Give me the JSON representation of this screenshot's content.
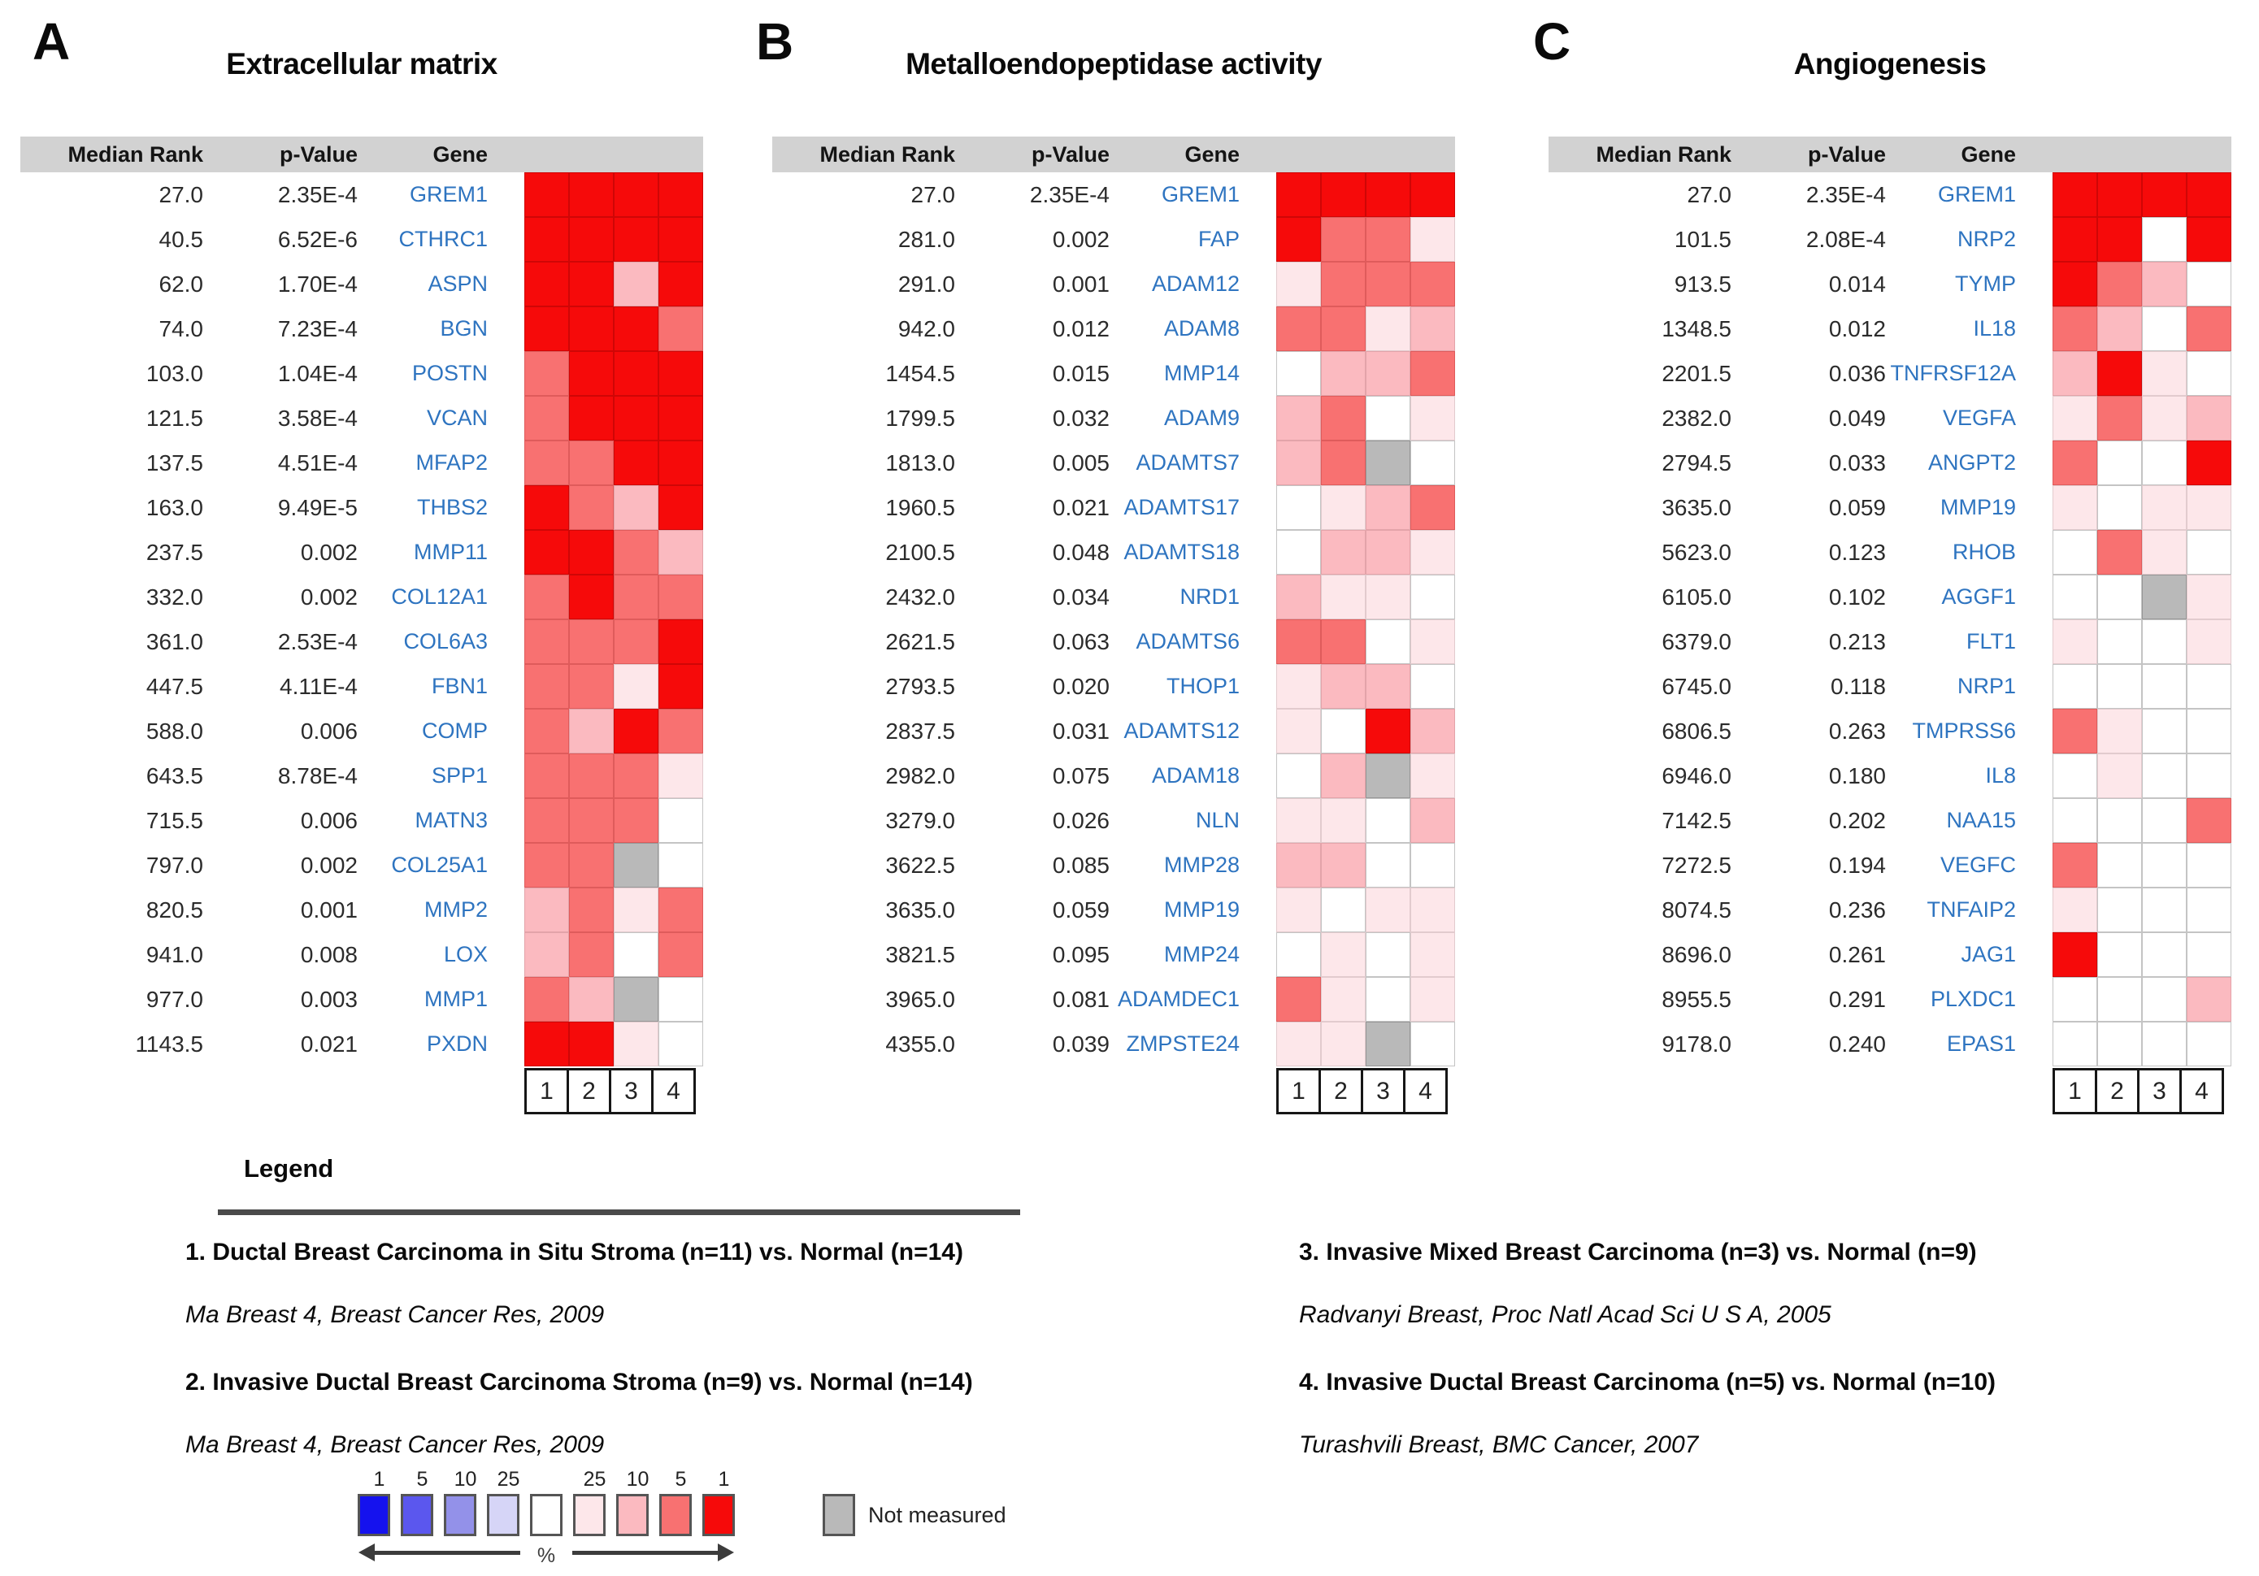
{
  "chart_data": {
    "type": "heatmap",
    "panels": [
      {
        "letter": "A",
        "title": "Extracellular matrix",
        "headers": {
          "median_rank": "Median Rank",
          "p_value": "p-Value",
          "gene": "Gene"
        },
        "lane_labels": [
          "1",
          "2",
          "3",
          "4"
        ],
        "rows": [
          {
            "median_rank": "27.0",
            "p_value": "2.35E-4",
            "gene": "GREM1",
            "cells": [
              "r1",
              "r1",
              "r1",
              "r1"
            ]
          },
          {
            "median_rank": "40.5",
            "p_value": "6.52E-6",
            "gene": "CTHRC1",
            "cells": [
              "r1",
              "r1",
              "r1",
              "r1"
            ]
          },
          {
            "median_rank": "62.0",
            "p_value": "1.70E-4",
            "gene": "ASPN",
            "cells": [
              "r1",
              "r1",
              "r10",
              "r1"
            ]
          },
          {
            "median_rank": "74.0",
            "p_value": "7.23E-4",
            "gene": "BGN",
            "cells": [
              "r1",
              "r1",
              "r1",
              "r5"
            ]
          },
          {
            "median_rank": "103.0",
            "p_value": "1.04E-4",
            "gene": "POSTN",
            "cells": [
              "r5",
              "r1",
              "r1",
              "r1"
            ]
          },
          {
            "median_rank": "121.5",
            "p_value": "3.58E-4",
            "gene": "VCAN",
            "cells": [
              "r5",
              "r1",
              "r1",
              "r1"
            ]
          },
          {
            "median_rank": "137.5",
            "p_value": "4.51E-4",
            "gene": "MFAP2",
            "cells": [
              "r5",
              "r5",
              "r1",
              "r1"
            ]
          },
          {
            "median_rank": "163.0",
            "p_value": "9.49E-5",
            "gene": "THBS2",
            "cells": [
              "r1",
              "r5",
              "r10",
              "r1"
            ]
          },
          {
            "median_rank": "237.5",
            "p_value": "0.002",
            "gene": "MMP11",
            "cells": [
              "r1",
              "r1",
              "r5",
              "r10"
            ]
          },
          {
            "median_rank": "332.0",
            "p_value": "0.002",
            "gene": "COL12A1",
            "cells": [
              "r5",
              "r1",
              "r5",
              "r5"
            ]
          },
          {
            "median_rank": "361.0",
            "p_value": "2.53E-4",
            "gene": "COL6A3",
            "cells": [
              "r5",
              "r5",
              "r5",
              "r1"
            ]
          },
          {
            "median_rank": "447.5",
            "p_value": "4.11E-4",
            "gene": "FBN1",
            "cells": [
              "r5",
              "r5",
              "r25",
              "r1"
            ]
          },
          {
            "median_rank": "588.0",
            "p_value": "0.006",
            "gene": "COMP",
            "cells": [
              "r5",
              "r10",
              "r1",
              "r5"
            ]
          },
          {
            "median_rank": "643.5",
            "p_value": "8.78E-4",
            "gene": "SPP1",
            "cells": [
              "r5",
              "r5",
              "r5",
              "r25"
            ]
          },
          {
            "median_rank": "715.5",
            "p_value": "0.006",
            "gene": "MATN3",
            "cells": [
              "r5",
              "r5",
              "r5",
              "w"
            ]
          },
          {
            "median_rank": "797.0",
            "p_value": "0.002",
            "gene": "COL25A1",
            "cells": [
              "r5",
              "r5",
              "nm",
              "w"
            ]
          },
          {
            "median_rank": "820.5",
            "p_value": "0.001",
            "gene": "MMP2",
            "cells": [
              "r10",
              "r5",
              "r25",
              "r5"
            ]
          },
          {
            "median_rank": "941.0",
            "p_value": "0.008",
            "gene": "LOX",
            "cells": [
              "r10",
              "r5",
              "w",
              "r5"
            ]
          },
          {
            "median_rank": "977.0",
            "p_value": "0.003",
            "gene": "MMP1",
            "cells": [
              "r5",
              "r10",
              "nm",
              "w"
            ]
          },
          {
            "median_rank": "1143.5",
            "p_value": "0.021",
            "gene": "PXDN",
            "cells": [
              "r1",
              "r1",
              "r25",
              "w"
            ]
          }
        ]
      },
      {
        "letter": "B",
        "title": "Metalloendopeptidase activity",
        "headers": {
          "median_rank": "Median Rank",
          "p_value": "p-Value",
          "gene": "Gene"
        },
        "lane_labels": [
          "1",
          "2",
          "3",
          "4"
        ],
        "rows": [
          {
            "median_rank": "27.0",
            "p_value": "2.35E-4",
            "gene": "GREM1",
            "cells": [
              "r1",
              "r1",
              "r1",
              "r1"
            ]
          },
          {
            "median_rank": "281.0",
            "p_value": "0.002",
            "gene": "FAP",
            "cells": [
              "r1",
              "r5",
              "r5",
              "r25"
            ]
          },
          {
            "median_rank": "291.0",
            "p_value": "0.001",
            "gene": "ADAM12",
            "cells": [
              "r25",
              "r5",
              "r5",
              "r5"
            ]
          },
          {
            "median_rank": "942.0",
            "p_value": "0.012",
            "gene": "ADAM8",
            "cells": [
              "r5",
              "r5",
              "r25",
              "r10"
            ]
          },
          {
            "median_rank": "1454.5",
            "p_value": "0.015",
            "gene": "MMP14",
            "cells": [
              "w",
              "r10",
              "r10",
              "r5"
            ]
          },
          {
            "median_rank": "1799.5",
            "p_value": "0.032",
            "gene": "ADAM9",
            "cells": [
              "r10",
              "r5",
              "w",
              "r25"
            ]
          },
          {
            "median_rank": "1813.0",
            "p_value": "0.005",
            "gene": "ADAMTS7",
            "cells": [
              "r10",
              "r5",
              "nm",
              "w"
            ]
          },
          {
            "median_rank": "1960.5",
            "p_value": "0.021",
            "gene": "ADAMTS17",
            "cells": [
              "w",
              "r25",
              "r10",
              "r5"
            ]
          },
          {
            "median_rank": "2100.5",
            "p_value": "0.048",
            "gene": "ADAMTS18",
            "cells": [
              "w",
              "r10",
              "r10",
              "r25"
            ]
          },
          {
            "median_rank": "2432.0",
            "p_value": "0.034",
            "gene": "NRD1",
            "cells": [
              "r10",
              "r25",
              "r25",
              "w"
            ]
          },
          {
            "median_rank": "2621.5",
            "p_value": "0.063",
            "gene": "ADAMTS6",
            "cells": [
              "r5",
              "r5",
              "w",
              "r25"
            ]
          },
          {
            "median_rank": "2793.5",
            "p_value": "0.020",
            "gene": "THOP1",
            "cells": [
              "r25",
              "r10",
              "r10",
              "w"
            ]
          },
          {
            "median_rank": "2837.5",
            "p_value": "0.031",
            "gene": "ADAMTS12",
            "cells": [
              "r25",
              "w",
              "r1",
              "r10"
            ]
          },
          {
            "median_rank": "2982.0",
            "p_value": "0.075",
            "gene": "ADAM18",
            "cells": [
              "w",
              "r10",
              "nm",
              "r25"
            ]
          },
          {
            "median_rank": "3279.0",
            "p_value": "0.026",
            "gene": "NLN",
            "cells": [
              "r25",
              "r25",
              "w",
              "r10"
            ]
          },
          {
            "median_rank": "3622.5",
            "p_value": "0.085",
            "gene": "MMP28",
            "cells": [
              "r10",
              "r10",
              "w",
              "w"
            ]
          },
          {
            "median_rank": "3635.0",
            "p_value": "0.059",
            "gene": "MMP19",
            "cells": [
              "r25",
              "w",
              "r25",
              "r25"
            ]
          },
          {
            "median_rank": "3821.5",
            "p_value": "0.095",
            "gene": "MMP24",
            "cells": [
              "w",
              "r25",
              "w",
              "r25"
            ]
          },
          {
            "median_rank": "3965.0",
            "p_value": "0.081",
            "gene": "ADAMDEC1",
            "cells": [
              "r5",
              "r25",
              "w",
              "r25"
            ]
          },
          {
            "median_rank": "4355.0",
            "p_value": "0.039",
            "gene": "ZMPSTE24",
            "cells": [
              "r25",
              "r25",
              "nm",
              "w"
            ]
          }
        ]
      },
      {
        "letter": "C",
        "title": "Angiogenesis",
        "headers": {
          "median_rank": "Median Rank",
          "p_value": "p-Value",
          "gene": "Gene"
        },
        "lane_labels": [
          "1",
          "2",
          "3",
          "4"
        ],
        "rows": [
          {
            "median_rank": "27.0",
            "p_value": "2.35E-4",
            "gene": "GREM1",
            "cells": [
              "r1",
              "r1",
              "r1",
              "r1"
            ]
          },
          {
            "median_rank": "101.5",
            "p_value": "2.08E-4",
            "gene": "NRP2",
            "cells": [
              "r1",
              "r1",
              "w",
              "r1"
            ]
          },
          {
            "median_rank": "913.5",
            "p_value": "0.014",
            "gene": "TYMP",
            "cells": [
              "r1",
              "r5",
              "r10",
              "w"
            ]
          },
          {
            "median_rank": "1348.5",
            "p_value": "0.012",
            "gene": "IL18",
            "cells": [
              "r5",
              "r10",
              "w",
              "r5"
            ]
          },
          {
            "median_rank": "2201.5",
            "p_value": "0.036",
            "gene": "TNFRSF12A",
            "cells": [
              "r10",
              "r1",
              "r25",
              "w"
            ]
          },
          {
            "median_rank": "2382.0",
            "p_value": "0.049",
            "gene": "VEGFA",
            "cells": [
              "r25",
              "r5",
              "r25",
              "r10"
            ]
          },
          {
            "median_rank": "2794.5",
            "p_value": "0.033",
            "gene": "ANGPT2",
            "cells": [
              "r5",
              "w",
              "w",
              "r1"
            ]
          },
          {
            "median_rank": "3635.0",
            "p_value": "0.059",
            "gene": "MMP19",
            "cells": [
              "r25",
              "w",
              "r25",
              "r25"
            ]
          },
          {
            "median_rank": "5623.0",
            "p_value": "0.123",
            "gene": "RHOB",
            "cells": [
              "w",
              "r5",
              "r25",
              "w"
            ]
          },
          {
            "median_rank": "6105.0",
            "p_value": "0.102",
            "gene": "AGGF1",
            "cells": [
              "w",
              "w",
              "nm",
              "r25"
            ]
          },
          {
            "median_rank": "6379.0",
            "p_value": "0.213",
            "gene": "FLT1",
            "cells": [
              "r25",
              "w",
              "w",
              "r25"
            ]
          },
          {
            "median_rank": "6745.0",
            "p_value": "0.118",
            "gene": "NRP1",
            "cells": [
              "w",
              "w",
              "w",
              "w"
            ]
          },
          {
            "median_rank": "6806.5",
            "p_value": "0.263",
            "gene": "TMPRSS6",
            "cells": [
              "r5",
              "r25",
              "w",
              "w"
            ]
          },
          {
            "median_rank": "6946.0",
            "p_value": "0.180",
            "gene": "IL8",
            "cells": [
              "w",
              "r25",
              "w",
              "w"
            ]
          },
          {
            "median_rank": "7142.5",
            "p_value": "0.202",
            "gene": "NAA15",
            "cells": [
              "w",
              "w",
              "w",
              "r5"
            ]
          },
          {
            "median_rank": "7272.5",
            "p_value": "0.194",
            "gene": "VEGFC",
            "cells": [
              "r5",
              "w",
              "w",
              "w"
            ]
          },
          {
            "median_rank": "8074.5",
            "p_value": "0.236",
            "gene": "TNFAIP2",
            "cells": [
              "r25",
              "w",
              "w",
              "w"
            ]
          },
          {
            "median_rank": "8696.0",
            "p_value": "0.261",
            "gene": "JAG1",
            "cells": [
              "r1",
              "w",
              "w",
              "w"
            ]
          },
          {
            "median_rank": "8955.5",
            "p_value": "0.291",
            "gene": "PLXDC1",
            "cells": [
              "w",
              "w",
              "w",
              "r10"
            ]
          },
          {
            "median_rank": "9178.0",
            "p_value": "0.240",
            "gene": "EPAS1",
            "cells": [
              "w",
              "w",
              "w",
              "w"
            ]
          }
        ]
      }
    ],
    "value_scale": {
      "numbers": [
        "1",
        "5",
        "10",
        "25",
        "",
        "25",
        "10",
        "5",
        "1"
      ],
      "box_order": [
        "b1",
        "b5",
        "b10",
        "b25",
        "w",
        "r25",
        "r10",
        "r5",
        "r1"
      ],
      "percent_label": "%",
      "not_measured_label": "Not measured"
    },
    "legend": {
      "title": "Legend",
      "entries": [
        {
          "label": "1. Ductal Breast Carcinoma in Situ Stroma (n=11) vs. Normal (n=14)",
          "source": "Ma Breast 4, Breast Cancer Res, 2009"
        },
        {
          "label": "2. Invasive Ductal Breast Carcinoma Stroma (n=9) vs. Normal (n=14)",
          "source": "Ma Breast 4, Breast Cancer Res, 2009"
        },
        {
          "label": "3. Invasive Mixed Breast Carcinoma (n=3) vs. Normal (n=9)",
          "source": "Radvanyi Breast, Proc Natl Acad Sci U S A, 2005"
        },
        {
          "label": "4. Invasive Ductal Breast Carcinoma (n=5)  vs. Normal (n=10)",
          "source": "Turashvili Breast, BMC Cancer, 2007"
        }
      ]
    }
  },
  "palette": {
    "fills": {
      "r1": "#f60a0a",
      "r5": "#f87171",
      "r10": "#fbbac0",
      "r25": "#fde7ea",
      "w": "#ffffff",
      "nm": "#b9b9b9",
      "b1": "#1512ee",
      "b5": "#5b57ee",
      "b10": "#9391e9",
      "b25": "#d6d5f7"
    },
    "borders": {
      "r1": "#cf0606",
      "r5": "#df5b5b",
      "r10": "#e3a3a9",
      "r25": "#e2cbce",
      "w": "#c4c4c4",
      "nm": "#969696",
      "b1": "#0d0bb4",
      "b5": "#4441c4",
      "b10": "#7a78c9",
      "b25": "#b6b5d8"
    },
    "header_bar": "#d2d2d2",
    "gene_link": "#2e74c0"
  }
}
